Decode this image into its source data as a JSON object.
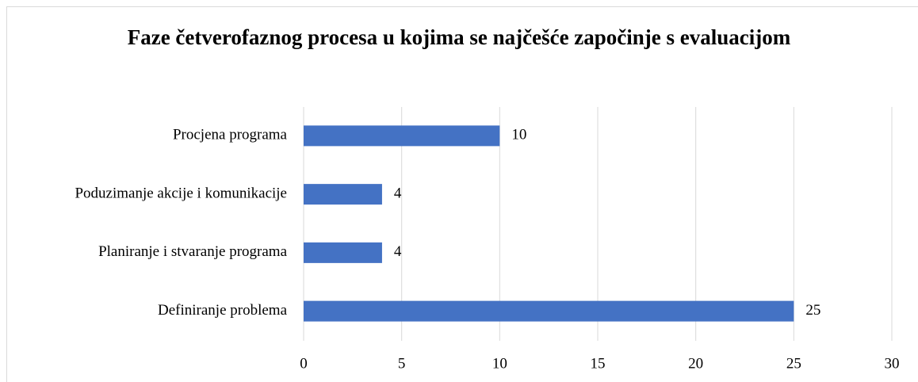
{
  "chart_data": {
    "type": "bar",
    "orientation": "horizontal",
    "title": "Faze četverofaznog procesa u kojima se najčešće započinje s evaluacijom",
    "categories": [
      "Procjena programa",
      "Poduzimanje akcije i komunikacije",
      "Planiranje i stvaranje programa",
      "Definiranje problema"
    ],
    "values": [
      10,
      4,
      4,
      25
    ],
    "color": "#4472c4",
    "xlim": [
      0,
      30
    ],
    "xticks": [
      0,
      5,
      10,
      15,
      20,
      25,
      30
    ],
    "grid": true
  }
}
